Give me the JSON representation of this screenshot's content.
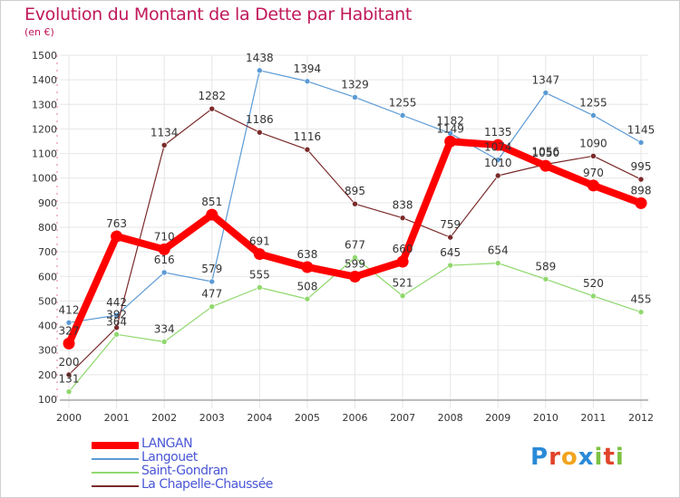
{
  "header": {
    "title": "Evolution du Montant de la Dette par Habitant",
    "subtitle": "(en €)"
  },
  "brand": {
    "letters": [
      "P",
      "r",
      "o",
      "x",
      "i",
      "t",
      "i"
    ],
    "colors": [
      "#2a8ad8",
      "#e0442a",
      "#f2a41f",
      "#2a8ad8",
      "#7cc242",
      "#e0442a",
      "#7cc242"
    ]
  },
  "chart_data": {
    "type": "line",
    "title": "Evolution du Montant de la Dette par Habitant",
    "subtitle": "(en €)",
    "x": [
      "2000",
      "2001",
      "2002",
      "2003",
      "2004",
      "2005",
      "2006",
      "2007",
      "2008",
      "2009",
      "2010",
      "2011",
      "2012"
    ],
    "ylim": [
      100,
      1500
    ],
    "yticks": [
      100,
      200,
      300,
      400,
      500,
      600,
      700,
      800,
      900,
      1000,
      1100,
      1200,
      1300,
      1400,
      1500
    ],
    "grid": true,
    "legend_position": "bottom-left",
    "series": [
      {
        "name": "LANGAN",
        "color": "#ff0000",
        "width": 8,
        "values": [
          327,
          763,
          710,
          851,
          691,
          638,
          599,
          660,
          1149,
          1135,
          1050,
          970,
          898
        ]
      },
      {
        "name": "Langouet",
        "color": "#5b9ad5",
        "width": 1.2,
        "values": [
          412,
          442,
          616,
          579,
          1438,
          1394,
          1329,
          1255,
          1182,
          1074,
          1347,
          1255,
          1145
        ]
      },
      {
        "name": "Saint-Gondran",
        "color": "#90d86e",
        "width": 1.2,
        "values": [
          131,
          364,
          334,
          477,
          555,
          508,
          677,
          521,
          645,
          654,
          589,
          520,
          455
        ]
      },
      {
        "name": "La Chapelle-Chaussée",
        "color": "#7a2a2a",
        "width": 1.2,
        "values": [
          200,
          392,
          1134,
          1282,
          1186,
          1116,
          895,
          838,
          759,
          1010,
          1056,
          1090,
          995
        ]
      }
    ]
  }
}
